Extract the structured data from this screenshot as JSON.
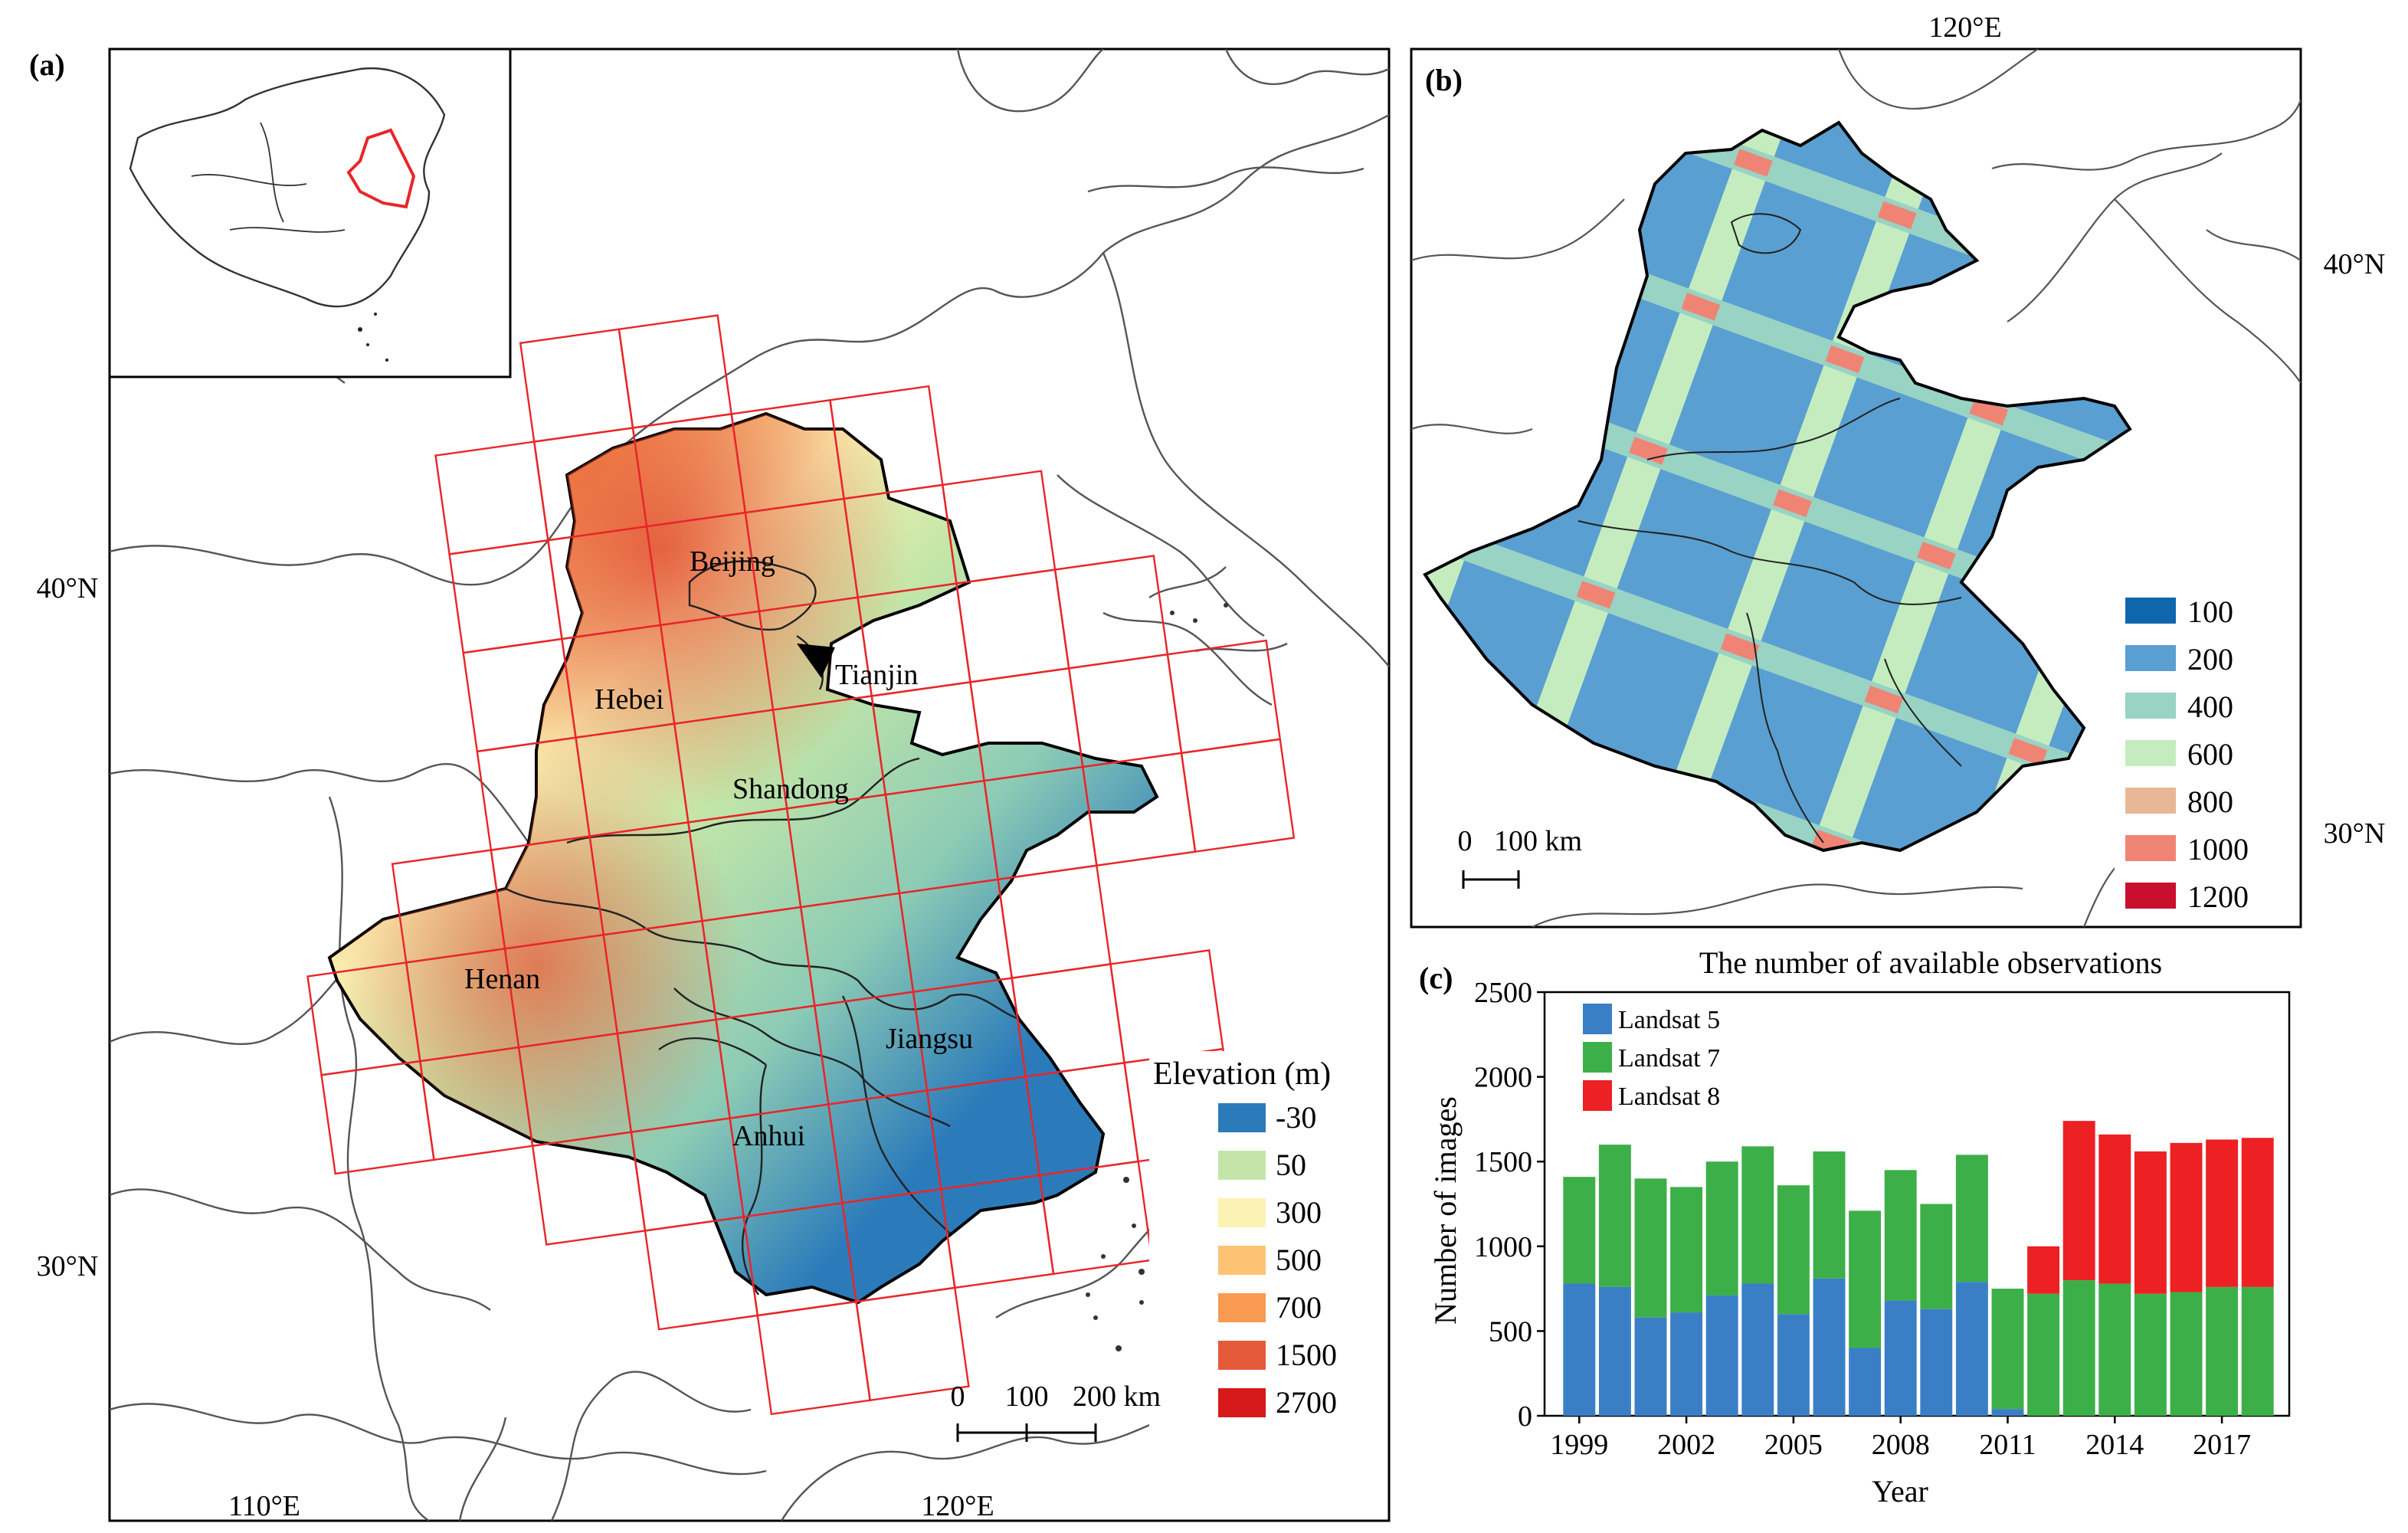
{
  "colors": {
    "elevation": [
      "#2b7bba",
      "#c3e6a8",
      "#fbf3b3",
      "#fdc374",
      "#f89a52",
      "#e65a3c",
      "#d7191c"
    ],
    "observations": [
      "#1066ad",
      "#5a9fd1",
      "#98d3c4",
      "#c5ecbf",
      "#e8b896",
      "#f08474",
      "#c8102e"
    ],
    "landsat": [
      "#3a7fc6",
      "#3daf48",
      "#ed2024"
    ],
    "frame": "#e8262a",
    "boundary": "#444444"
  },
  "panel_a": {
    "label": "(a)",
    "lon_ticks": [
      "110°E",
      "120°E"
    ],
    "lat_ticks": [
      "40°N",
      "30°N"
    ],
    "provinces": [
      "Beijing",
      "Tianjin",
      "Hebei",
      "Shandong",
      "Henan",
      "Jiangsu",
      "Anhui"
    ],
    "legend_title": "Elevation (m)",
    "legend_values": [
      "-30",
      "50",
      "300",
      "500",
      "700",
      "1500",
      "2700"
    ],
    "scale_labels": [
      "0",
      "100",
      "200 km"
    ]
  },
  "panel_b": {
    "label": "(b)",
    "lon_ticks": [
      "120°E"
    ],
    "lat_ticks": [
      "40°N",
      "30°N"
    ],
    "legend_values": [
      "100",
      "200",
      "400",
      "600",
      "800",
      "1000",
      "1200"
    ],
    "scale_labels": [
      "0",
      "100 km"
    ]
  },
  "chart_data": {
    "type": "bar",
    "stacked": true,
    "label": "(c)",
    "title": "The number of available observations",
    "xlabel": "Year",
    "ylabel": "Number of images",
    "ylim": [
      0,
      2500
    ],
    "yticks": [
      0,
      500,
      1000,
      1500,
      2000,
      2500
    ],
    "xticks": [
      "1999",
      "2002",
      "2005",
      "2008",
      "2011",
      "2014",
      "2017"
    ],
    "categories": [
      "1999",
      "2000",
      "2001",
      "2002",
      "2003",
      "2004",
      "2005",
      "2006",
      "2007",
      "2008",
      "2009",
      "2010",
      "2011",
      "2012",
      "2013",
      "2014",
      "2015",
      "2016",
      "2017",
      "2018"
    ],
    "series": [
      {
        "name": "Landsat 5",
        "values": [
          780,
          760,
          580,
          610,
          710,
          780,
          600,
          810,
          400,
          680,
          630,
          790,
          40,
          0,
          0,
          0,
          0,
          0,
          0,
          0
        ]
      },
      {
        "name": "Landsat 7",
        "values": [
          630,
          840,
          820,
          740,
          790,
          810,
          760,
          750,
          810,
          770,
          620,
          750,
          710,
          720,
          800,
          780,
          720,
          730,
          760,
          760
        ]
      },
      {
        "name": "Landsat 8",
        "values": [
          0,
          0,
          0,
          0,
          0,
          0,
          0,
          0,
          0,
          0,
          0,
          0,
          0,
          280,
          940,
          880,
          840,
          880,
          870,
          880
        ]
      }
    ]
  }
}
